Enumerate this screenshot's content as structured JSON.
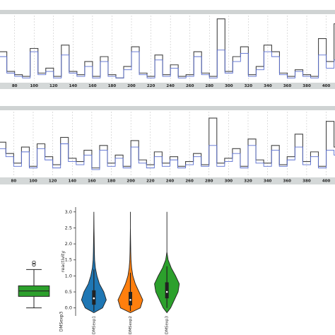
{
  "chart_data": [
    {
      "type": "line",
      "drawstyle": "steps",
      "xlim": [
        65,
        409
      ],
      "ylim": [
        0,
        4
      ],
      "xticks": [
        80,
        100,
        120,
        140,
        160,
        180,
        200,
        220,
        240,
        260,
        280,
        300,
        320,
        340,
        360,
        380,
        400
      ],
      "grid": true,
      "x": [
        64,
        72,
        80,
        88,
        96,
        104,
        112,
        120,
        128,
        136,
        144,
        152,
        160,
        168,
        176,
        184,
        192,
        200,
        208,
        216,
        224,
        232,
        240,
        248,
        256,
        264,
        272,
        280,
        288,
        296,
        304,
        312,
        320,
        328,
        336,
        344,
        352,
        360,
        368,
        376,
        384,
        392,
        400,
        408
      ],
      "series": [
        {
          "color": "#444444",
          "values": [
            1.8,
            0.6,
            0.4,
            0.3,
            2.0,
            0.5,
            0.8,
            0.3,
            2.2,
            0.6,
            0.4,
            1.2,
            0.3,
            1.5,
            0.4,
            0.2,
            0.9,
            2.1,
            0.5,
            0.3,
            1.6,
            0.4,
            1.0,
            0.3,
            0.4,
            1.8,
            0.5,
            0.3,
            3.8,
            0.6,
            1.5,
            2.1,
            0.4,
            0.9,
            2.2,
            1.8,
            0.5,
            0.3,
            0.7,
            0.4,
            0.3,
            2.6,
            1.2,
            3.5
          ]
        },
        {
          "color": "#5a6fd0",
          "values": [
            1.5,
            0.5,
            0.3,
            0.2,
            1.8,
            0.4,
            0.6,
            0.2,
            1.6,
            0.5,
            0.3,
            0.9,
            0.2,
            1.2,
            0.3,
            0.2,
            0.7,
            1.8,
            0.4,
            0.2,
            1.3,
            0.3,
            0.8,
            0.2,
            0.3,
            1.5,
            0.4,
            0.2,
            1.9,
            0.5,
            1.2,
            1.7,
            0.3,
            0.7,
            1.8,
            1.5,
            0.4,
            0.2,
            0.6,
            0.3,
            0.2,
            1.6,
            0.8,
            1.3
          ]
        }
      ]
    },
    {
      "type": "line",
      "drawstyle": "steps",
      "xlim": [
        66,
        409
      ],
      "ylim": [
        0,
        4
      ],
      "xticks": [
        80,
        100,
        120,
        140,
        160,
        180,
        200,
        220,
        240,
        260,
        280,
        300,
        320,
        340,
        360,
        380,
        400
      ],
      "grid": true,
      "x": [
        64,
        72,
        80,
        88,
        96,
        104,
        112,
        120,
        128,
        136,
        144,
        152,
        160,
        168,
        176,
        184,
        192,
        200,
        208,
        216,
        224,
        232,
        240,
        248,
        256,
        264,
        272,
        280,
        288,
        296,
        304,
        312,
        320,
        328,
        336,
        344,
        352,
        360,
        368,
        376,
        384,
        392,
        400,
        408
      ],
      "series": [
        {
          "color": "#444444",
          "values": [
            2.1,
            1.4,
            0.8,
            1.8,
            0.6,
            2.0,
            1.2,
            0.7,
            2.4,
            1.1,
            0.9,
            1.6,
            0.5,
            1.9,
            0.8,
            1.3,
            0.6,
            2.2,
            1.0,
            0.7,
            1.5,
            0.8,
            1.2,
            0.6,
            0.9,
            1.4,
            0.7,
            3.6,
            0.8,
            1.1,
            1.7,
            0.6,
            2.3,
            1.0,
            0.8,
            1.9,
            0.7,
            1.2,
            2.6,
            0.9,
            1.5,
            0.6,
            3.4,
            1.8
          ]
        },
        {
          "color": "#5a6fd0",
          "values": [
            1.7,
            1.2,
            0.6,
            1.5,
            0.5,
            1.7,
            1.0,
            0.5,
            2.0,
            0.9,
            0.7,
            1.3,
            0.4,
            1.6,
            0.6,
            1.1,
            0.5,
            1.8,
            0.8,
            0.5,
            1.2,
            0.6,
            1.0,
            0.5,
            0.7,
            1.2,
            0.6,
            1.9,
            0.6,
            0.9,
            1.4,
            0.5,
            1.9,
            0.8,
            0.6,
            1.6,
            0.6,
            1.0,
            1.8,
            0.7,
            1.2,
            0.5,
            1.6,
            1.3
          ]
        }
      ]
    },
    {
      "type": "box",
      "categories": [
        "DMSexp3"
      ],
      "ylim": [
        -0.25,
        3.15
      ],
      "color": "#2ca02c",
      "whisker_low": [
        0.0
      ],
      "q1": [
        0.36
      ],
      "median": [
        0.53
      ],
      "q3": [
        0.69
      ],
      "whisker_high": [
        1.2
      ],
      "outliers": [
        [
          1.35,
          1.42
        ]
      ]
    },
    {
      "type": "violin",
      "y_label": "reactivity",
      "categories": [
        "DMSexp1",
        "DMSexp2",
        "DMSexp3"
      ],
      "ylim": [
        -0.25,
        3.15
      ],
      "yticks": [
        {
          "value": 0,
          "label": "0.0"
        },
        {
          "value": 0.5,
          "label": "0.5"
        },
        {
          "value": 1,
          "label": "1.0"
        },
        {
          "value": 1.5,
          "label": "1.5"
        },
        {
          "value": 2,
          "label": "2.0"
        },
        {
          "value": 2.5,
          "label": "2.5"
        },
        {
          "value": 3,
          "label": "3.0"
        }
      ],
      "density_y": [
        -0.15,
        0,
        0.25,
        0.5,
        0.75,
        1,
        1.25,
        1.5,
        1.75,
        2,
        2.25,
        2.5,
        2.75,
        3.0
      ],
      "series": [
        {
          "color": "#1f77b4",
          "density": [
            0,
            0.7,
            1,
            0.8,
            0.45,
            0.25,
            0.12,
            0.06,
            0.04,
            0.03,
            0.02,
            0.01,
            0.005,
            0
          ],
          "q1": 0.1,
          "median": 0.3,
          "q3": 0.55,
          "whisker_low": -0.1,
          "whisker_high": 1.2
        },
        {
          "color": "#ff7f0e",
          "density": [
            0,
            0.8,
            1,
            0.7,
            0.4,
            0.2,
            0.1,
            0.05,
            0.03,
            0.02,
            0.01,
            0,
            0,
            0
          ],
          "q1": 0.08,
          "median": 0.25,
          "q3": 0.5,
          "whisker_low": -0.1,
          "whisker_high": 1.1
        },
        {
          "color": "#2ca02c",
          "density": [
            0,
            0.3,
            0.6,
            0.9,
            1,
            0.7,
            0.35,
            0.1,
            0,
            0,
            0,
            0,
            0,
            0
          ],
          "q1": 0.3,
          "median": 0.5,
          "q3": 0.8,
          "whisker_low": 0.0,
          "whisker_high": 1.3
        }
      ]
    }
  ]
}
